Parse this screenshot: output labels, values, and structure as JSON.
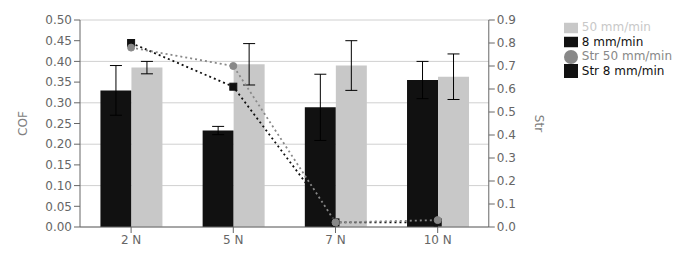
{
  "chart_data": {
    "type": "bar",
    "categories": [
      "2 N",
      "5 N",
      "7 N",
      "10 N"
    ],
    "series": [
      {
        "name": "8 mm/min",
        "type": "bar",
        "color": "#111111",
        "values": [
          0.33,
          0.233,
          0.289,
          0.355
        ],
        "errors": [
          0.06,
          0.01,
          0.08,
          0.045
        ]
      },
      {
        "name": "50 mm/min",
        "type": "bar",
        "color": "#c8c8c8",
        "values": [
          0.385,
          0.393,
          0.39,
          0.363
        ],
        "errors": [
          0.015,
          0.05,
          0.06,
          0.055
        ]
      },
      {
        "name": "Str 8 mm/min",
        "type": "line",
        "axis": "y2",
        "color": "#111111",
        "marker": "square",
        "line_style": "dotted",
        "values": [
          0.8,
          0.61,
          0.02,
          0.02
        ]
      },
      {
        "name": "Str 50 mm/min",
        "type": "line",
        "axis": "y2",
        "color": "#888888",
        "marker": "circle",
        "line_style": "dotted",
        "values": [
          0.78,
          0.7,
          0.02,
          0.03
        ]
      }
    ],
    "ylabel": "COF",
    "y2label": "Str",
    "ylim": [
      0.0,
      0.5
    ],
    "yticks": [
      {
        "value": 0,
        "label": "0.00"
      },
      0.05,
      {
        "value": 0.1,
        "label": "0.10"
      },
      0.15,
      {
        "value": 0.2,
        "label": "0.20"
      },
      0.25,
      {
        "value": 0.3,
        "label": "0.30"
      },
      0.35,
      {
        "value": 0.4,
        "label": "0.40"
      },
      0.45,
      {
        "value": 0.5,
        "label": "0.50"
      }
    ],
    "y2lim": [
      0.0,
      0.9
    ],
    "y2ticks": [
      {
        "value": 0,
        "label": "0.0"
      },
      0.1,
      0.2,
      0.3,
      0.4,
      0.5,
      0.6,
      0.7,
      0.8,
      0.9
    ],
    "grid": true,
    "legend": "right"
  }
}
